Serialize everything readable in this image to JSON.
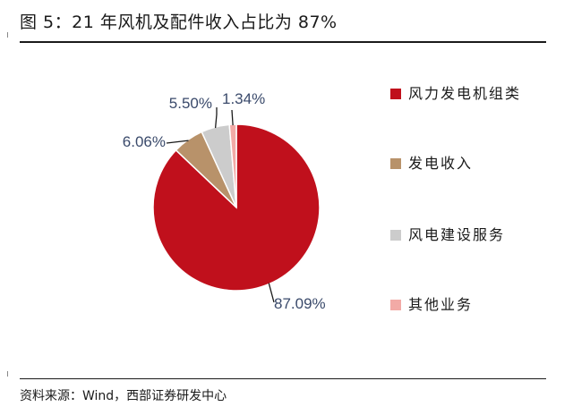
{
  "figure": {
    "title": "图 5：21 年风机及配件收入占比为 87%",
    "source": "资料来源：Wind，西部证券研发中心"
  },
  "chart_data": {
    "type": "pie",
    "categories": [
      "风力发电机组类",
      "发电收入",
      "风电建设服务",
      "其他业务"
    ],
    "values": [
      87.09,
      6.06,
      5.5,
      1.34
    ],
    "data_labels": [
      "87.09%",
      "6.06%",
      "5.50%",
      "1.34%"
    ],
    "colors": [
      "#c0101c",
      "#b8926a",
      "#cccccc",
      "#f2aaa6"
    ],
    "legend_position": "right"
  }
}
